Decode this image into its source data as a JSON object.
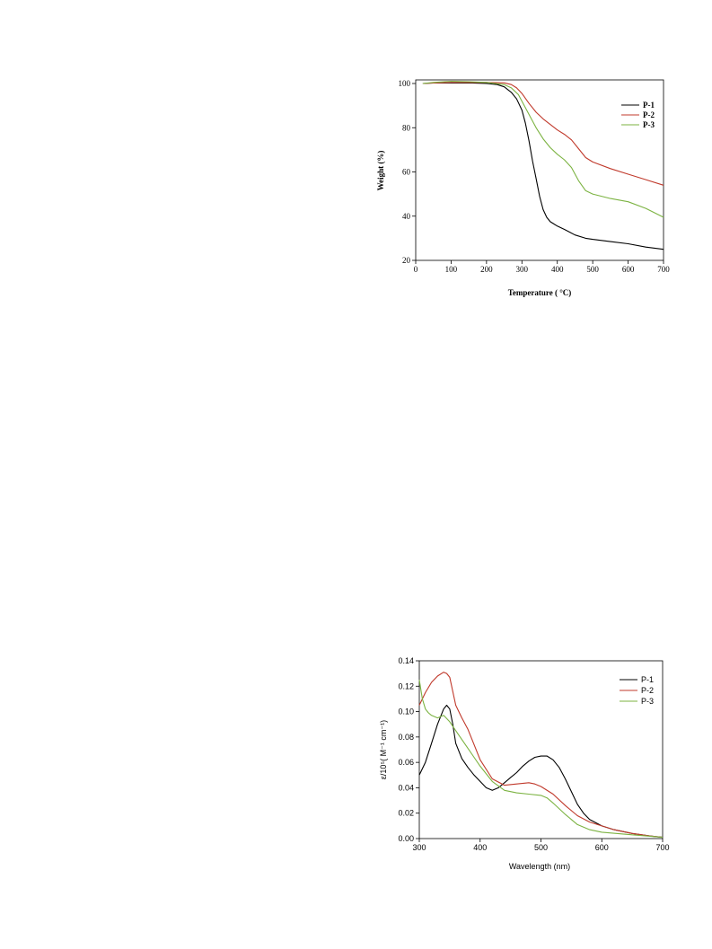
{
  "chart_data": [
    {
      "type": "line",
      "title": "",
      "xlabel": "Temperature ( °C)",
      "ylabel": "Weight (%)",
      "xlim": [
        0,
        700
      ],
      "ylim": [
        20,
        100
      ],
      "xticks": [
        0,
        100,
        200,
        300,
        400,
        500,
        600,
        700
      ],
      "yticks": [
        20,
        40,
        60,
        80,
        100
      ],
      "legend_position": "top-right",
      "grid": false,
      "series": [
        {
          "name": "P-1",
          "color": "#000000",
          "x": [
            20,
            50,
            100,
            150,
            200,
            230,
            250,
            270,
            285,
            300,
            310,
            320,
            330,
            340,
            350,
            360,
            370,
            380,
            390,
            400,
            420,
            450,
            480,
            500,
            550,
            600,
            650,
            700
          ],
          "y": [
            100,
            100.2,
            100.2,
            100.3,
            100,
            99.5,
            98.5,
            96,
            93,
            88,
            82,
            74,
            65,
            57,
            49,
            43,
            39.5,
            37.5,
            36.5,
            35.5,
            34,
            31.5,
            30,
            29.5,
            28.5,
            27.5,
            26,
            25
          ]
        },
        {
          "name": "P-2",
          "color": "#c0392b",
          "x": [
            20,
            50,
            100,
            150,
            200,
            250,
            270,
            285,
            300,
            320,
            340,
            360,
            380,
            400,
            420,
            440,
            460,
            480,
            500,
            550,
            600,
            650,
            700
          ],
          "y": [
            100,
            100.2,
            100.5,
            100.5,
            100.5,
            100.3,
            99.5,
            98,
            95.5,
            91,
            87,
            84,
            81.5,
            79,
            77,
            74.5,
            70.5,
            66.5,
            64.5,
            61.5,
            59,
            56.5,
            54
          ]
        },
        {
          "name": "P-3",
          "color": "#7cb342",
          "x": [
            20,
            50,
            100,
            150,
            200,
            250,
            270,
            290,
            300,
            320,
            340,
            360,
            380,
            400,
            420,
            440,
            460,
            480,
            500,
            550,
            600,
            650,
            700
          ],
          "y": [
            100,
            100.5,
            101,
            100.8,
            100.5,
            99.5,
            98,
            95,
            92,
            86,
            80,
            75,
            71,
            68,
            65.5,
            62,
            56,
            51.5,
            50,
            48,
            46.5,
            43.5,
            39.5
          ]
        }
      ]
    },
    {
      "type": "line",
      "title": "",
      "xlabel": "Wavelength (nm)",
      "ylabel": "ε/10⁵( M⁻¹ cm⁻¹)",
      "xlim": [
        300,
        700
      ],
      "ylim": [
        0,
        0.14
      ],
      "xticks": [
        300,
        400,
        500,
        600,
        700
      ],
      "xtick_labels": [
        "300",
        "400",
        "500",
        "600",
        "700"
      ],
      "yticks": [
        0,
        0.02,
        0.04,
        0.06,
        0.08,
        0.1,
        0.12,
        0.14
      ],
      "ytick_labels": [
        "0.00",
        "0.02",
        "0.04",
        "0.06",
        "0.08",
        "0.10",
        "0.12",
        "0.14"
      ],
      "legend_position": "top-right",
      "grid": false,
      "series": [
        {
          "name": "P-1",
          "color": "#000000",
          "x": [
            300,
            310,
            320,
            330,
            340,
            345,
            350,
            355,
            360,
            370,
            380,
            390,
            400,
            410,
            420,
            430,
            440,
            450,
            460,
            470,
            480,
            490,
            500,
            510,
            520,
            530,
            540,
            550,
            560,
            570,
            580,
            600,
            620,
            650,
            680,
            700
          ],
          "y": [
            0.05,
            0.06,
            0.075,
            0.09,
            0.102,
            0.105,
            0.102,
            0.09,
            0.075,
            0.063,
            0.056,
            0.05,
            0.045,
            0.04,
            0.038,
            0.04,
            0.044,
            0.048,
            0.052,
            0.057,
            0.061,
            0.064,
            0.065,
            0.065,
            0.062,
            0.056,
            0.047,
            0.037,
            0.027,
            0.02,
            0.015,
            0.01,
            0.007,
            0.004,
            0.002,
            0.001
          ]
        },
        {
          "name": "P-2",
          "color": "#c0392b",
          "x": [
            300,
            310,
            320,
            330,
            340,
            345,
            350,
            360,
            370,
            380,
            390,
            400,
            420,
            440,
            460,
            480,
            490,
            500,
            520,
            540,
            560,
            580,
            600,
            620,
            650,
            680,
            700
          ],
          "y": [
            0.105,
            0.115,
            0.123,
            0.128,
            0.131,
            0.13,
            0.127,
            0.105,
            0.095,
            0.086,
            0.074,
            0.062,
            0.047,
            0.042,
            0.043,
            0.044,
            0.043,
            0.041,
            0.035,
            0.026,
            0.018,
            0.013,
            0.01,
            0.007,
            0.004,
            0.002,
            0.001
          ]
        },
        {
          "name": "P-3",
          "color": "#7cb342",
          "x": [
            300,
            305,
            310,
            315,
            320,
            330,
            340,
            350,
            360,
            370,
            380,
            390,
            400,
            420,
            440,
            460,
            480,
            500,
            510,
            520,
            540,
            560,
            580,
            600,
            650,
            700
          ],
          "y": [
            0.125,
            0.11,
            0.102,
            0.099,
            0.097,
            0.095,
            0.097,
            0.092,
            0.085,
            0.078,
            0.071,
            0.064,
            0.057,
            0.045,
            0.038,
            0.036,
            0.035,
            0.034,
            0.032,
            0.028,
            0.019,
            0.011,
            0.007,
            0.005,
            0.003,
            0.001
          ]
        }
      ]
    }
  ]
}
